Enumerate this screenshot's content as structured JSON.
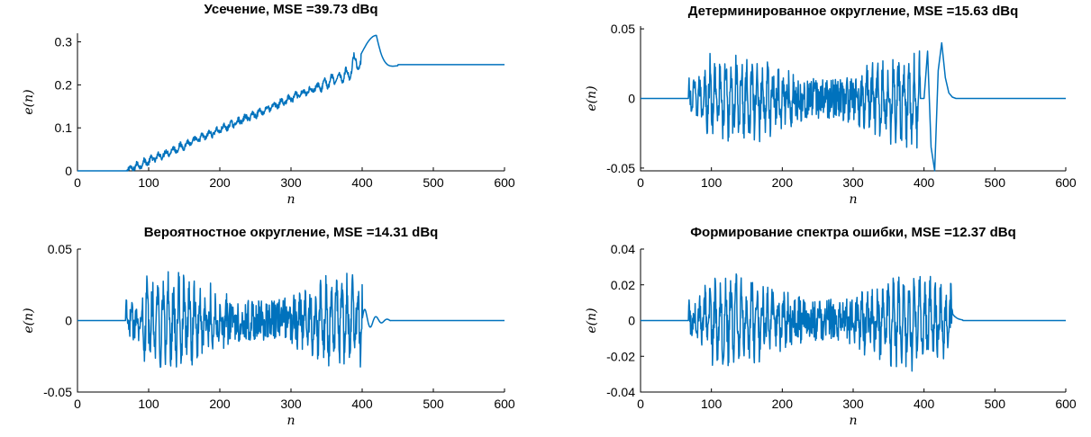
{
  "chart_data": [
    {
      "type": "line",
      "title": "Усечение, MSE =39.73 dBq",
      "xlabel": "n",
      "ylabel": "e(n)",
      "xlim": [
        0,
        600
      ],
      "ylim": [
        0,
        0.32
      ],
      "xticks": [
        0,
        100,
        200,
        300,
        400,
        500,
        600
      ],
      "xticklabels": [
        "0",
        "100",
        "200",
        "300",
        "400",
        "500",
        "600"
      ],
      "yticks": [
        0,
        0.1,
        0.2,
        0.3
      ],
      "yticklabels": [
        "0",
        "0.1",
        "0.2",
        "0.3"
      ],
      "grid": false,
      "color": "#0072BD",
      "series": [
        {
          "x": [
            0,
            65,
            70,
            80,
            90,
            100,
            110,
            120,
            130,
            140,
            150,
            160,
            170,
            180,
            190,
            200,
            210,
            220,
            230,
            240,
            250,
            260,
            270,
            280,
            290,
            300,
            310,
            320,
            330,
            340,
            350,
            360,
            370,
            375,
            380,
            385,
            390,
            395,
            400,
            405,
            410,
            415,
            420,
            425,
            430,
            435,
            440,
            445,
            450,
            600
          ],
          "y": [
            0,
            0,
            0.002,
            0.012,
            0.022,
            0.032,
            0.045,
            0.055,
            0.065,
            0.075,
            0.085,
            0.092,
            0.1,
            0.11,
            0.12,
            0.125,
            0.135,
            0.145,
            0.15,
            0.16,
            0.17,
            0.175,
            0.185,
            0.19,
            0.2,
            0.205,
            0.21,
            0.22,
            0.225,
            0.23,
            0.235,
            0.245,
            0.25,
            0.262,
            0.24,
            0.27,
            0.295,
            0.26,
            0.275,
            0.29,
            0.3,
            0.31,
            0.315,
            0.3,
            0.28,
            0.262,
            0.252,
            0.248,
            0.247,
            0.247
          ]
        }
      ]
    },
    {
      "type": "line",
      "title": "Детерминированное округление, MSE =15.63 dBq",
      "xlabel": "n",
      "ylabel": "e(n)",
      "xlim": [
        0,
        600
      ],
      "ylim": [
        -0.052,
        0.052
      ],
      "xticks": [
        0,
        100,
        200,
        300,
        400,
        500,
        600
      ],
      "xticklabels": [
        "0",
        "100",
        "200",
        "300",
        "400",
        "500",
        "600"
      ],
      "yticks": [
        -0.05,
        0,
        0.05
      ],
      "yticklabels": [
        "-0.05",
        "0",
        "0.05"
      ],
      "grid": false,
      "color": "#0072BD",
      "series": [
        {
          "x": [
            0,
            68,
            75,
            85,
            95,
            105,
            115,
            125,
            135,
            145,
            155,
            165,
            175,
            185,
            195,
            205,
            215,
            225,
            235,
            245,
            255,
            265,
            275,
            285,
            295,
            305,
            315,
            325,
            335,
            345,
            355,
            365,
            375,
            385,
            395,
            400,
            405,
            410,
            415,
            420,
            425,
            430,
            435,
            440,
            445,
            450,
            600
          ],
          "y": [
            0,
            0,
            0,
            0,
            0,
            0,
            0,
            0,
            0,
            0,
            0,
            0,
            0,
            0,
            0,
            0,
            0,
            0,
            0,
            0,
            0,
            0,
            0,
            0,
            0,
            0,
            0,
            0,
            0,
            0,
            0,
            0,
            0,
            0,
            0,
            0,
            0.034,
            -0.035,
            -0.052,
            0.02,
            0.04,
            0.015,
            0.004,
            0.001,
            0,
            0,
            0
          ]
        }
      ]
    },
    {
      "type": "line",
      "title": "Вероятностное округление, MSE =14.31 dBq",
      "xlabel": "n",
      "ylabel": "e(n)",
      "xlim": [
        0,
        600
      ],
      "ylim": [
        -0.05,
        0.05
      ],
      "xticks": [
        0,
        100,
        200,
        300,
        400,
        500,
        600
      ],
      "xticklabels": [
        "0",
        "100",
        "200",
        "300",
        "400",
        "500",
        "600"
      ],
      "yticks": [
        -0.05,
        0,
        0.05
      ],
      "yticklabels": [
        "-0.05",
        "0",
        "0.05"
      ],
      "grid": false,
      "color": "#0072BD",
      "series": [
        {
          "x": [
            0,
            65,
            600
          ],
          "y": [
            0,
            0,
            0
          ]
        }
      ]
    },
    {
      "type": "line",
      "title": "Формирование спектра ошибки, MSE =12.37 dBq",
      "xlabel": "n",
      "ylabel": "e(n)",
      "xlim": [
        0,
        600
      ],
      "ylim": [
        -0.04,
        0.04
      ],
      "xticks": [
        0,
        100,
        200,
        300,
        400,
        500,
        600
      ],
      "xticklabels": [
        "0",
        "100",
        "200",
        "300",
        "400",
        "500",
        "600"
      ],
      "yticks": [
        -0.04,
        -0.02,
        0,
        0.02,
        0.04
      ],
      "yticklabels": [
        "-0.04",
        "-0.02",
        "0",
        "0.02",
        "0.04"
      ],
      "grid": false,
      "color": "#0072BD",
      "series": [
        {
          "x": [
            0,
            65,
            600
          ],
          "y": [
            0,
            0,
            0
          ]
        }
      ]
    }
  ]
}
